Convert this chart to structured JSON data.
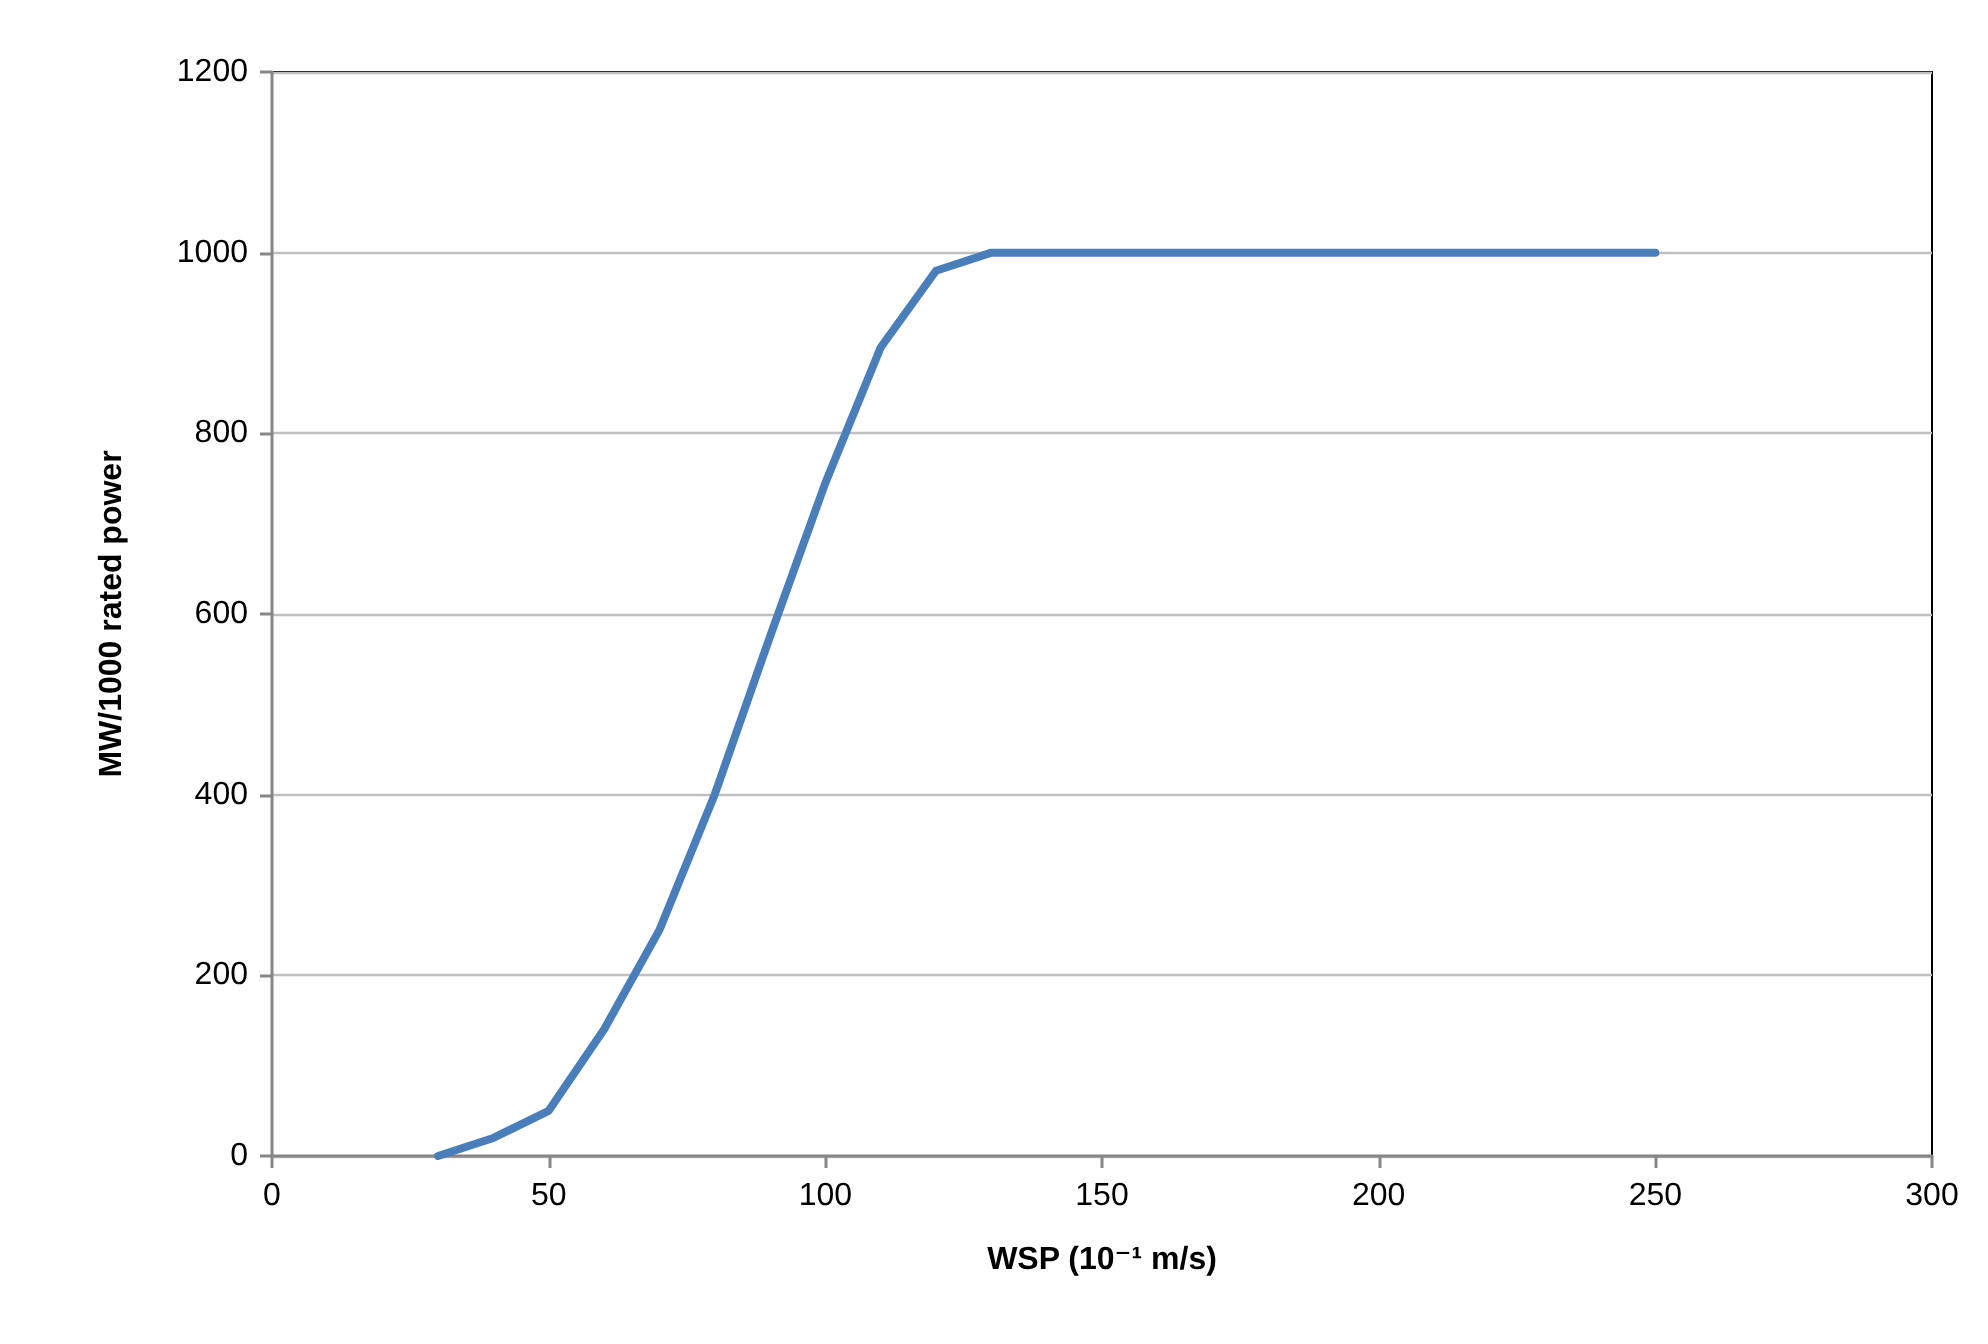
{
  "chart_data": {
    "type": "line",
    "xlabel": "WSP (10⁻¹ m/s)",
    "ylabel": "MW/1000 rated power",
    "x": [
      30,
      40,
      50,
      60,
      70,
      80,
      90,
      100,
      110,
      120,
      130,
      140,
      150,
      160,
      170,
      180,
      190,
      200,
      210,
      220,
      230,
      240,
      250
    ],
    "series": [
      {
        "color": "#4a7ebb",
        "values": [
          0,
          20,
          50,
          140,
          250,
          400,
          575,
          745,
          895,
          980,
          1000,
          1000,
          1000,
          1000,
          1000,
          1000,
          1000,
          1000,
          1000,
          1000,
          1000,
          1000,
          1000
        ]
      }
    ],
    "xlim": [
      0,
      300
    ],
    "xticks": [
      0,
      50,
      100,
      150,
      200,
      250,
      300
    ],
    "ylim": [
      0,
      1200
    ],
    "yticks": [
      0,
      200,
      400,
      600,
      800,
      1000,
      1200
    ],
    "grid": "y",
    "marker": "none",
    "line_style": "solid"
  }
}
